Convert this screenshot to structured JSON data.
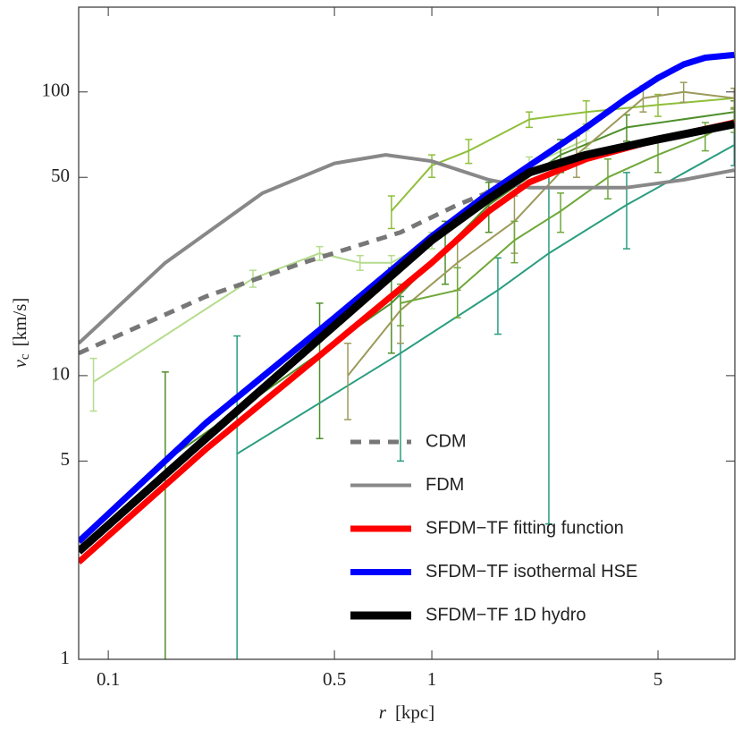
{
  "chart_data": {
    "type": "line",
    "log_x": true,
    "log_y": true,
    "xlim": [
      0.081,
      8.64
    ],
    "ylim": [
      1,
      199
    ],
    "xticks": [
      0.1,
      0.5,
      1,
      5
    ],
    "yticks": [
      1,
      5,
      10,
      50,
      100
    ],
    "xlabel": {
      "symbol": "r",
      "unit": "[kpc]"
    },
    "ylabel": {
      "symbol": "v",
      "subscript": "c",
      "unit": "[km/s]"
    },
    "legend": "lower center",
    "series": [
      {
        "color": "#b5dc8e",
        "width": 2,
        "x": [
          0.09,
          0.28,
          0.45,
          0.6,
          0.75,
          1,
          1.5,
          2,
          3
        ],
        "values": [
          9.5,
          22,
          27,
          25,
          25,
          30,
          42,
          55,
          68
        ],
        "errors": [
          2,
          1.5,
          1.5,
          1.5,
          1.5,
          2,
          3,
          4,
          5
        ]
      },
      {
        "color": "#4f8f2a",
        "width": 2,
        "x": [
          0.15,
          0.45,
          0.75,
          1.1,
          1.5,
          2.5,
          4,
          8.6
        ],
        "values": [
          5,
          12,
          18,
          28,
          40,
          60,
          75,
          85
        ],
        "errors": [
          5.3,
          6,
          6,
          7,
          8,
          8,
          8,
          8
        ]
      },
      {
        "color": "#2a9d7f",
        "width": 2,
        "x": [
          0.25,
          0.8,
          1.6,
          2.3,
          4,
          8.6
        ],
        "values": [
          5.3,
          12,
          20,
          27,
          40,
          65
        ],
        "errors": [
          8.5,
          7,
          6,
          24,
          12,
          10
        ]
      },
      {
        "color": "#8fbf3a",
        "width": 2,
        "x": [
          0.75,
          1,
          1.3,
          2,
          3,
          5,
          8.6
        ],
        "values": [
          38,
          55,
          62,
          80,
          85,
          90,
          95
        ],
        "errors": [
          5,
          5,
          6,
          5,
          8,
          8,
          8
        ]
      },
      {
        "color": "#9c9a5a",
        "width": 2,
        "x": [
          0.55,
          0.8,
          1.2,
          1.8,
          2.8,
          4.5,
          6,
          8.6
        ],
        "values": [
          10,
          17,
          25,
          35,
          60,
          95,
          100,
          95
        ],
        "errors": [
          3,
          4,
          5,
          8,
          10,
          10,
          8,
          8
        ]
      },
      {
        "color": "#6fa83a",
        "width": 2,
        "x": [
          0.8,
          1.2,
          1.8,
          2.5,
          3.5,
          5,
          7,
          8.6
        ],
        "values": [
          18,
          20,
          30,
          38,
          50,
          60,
          70,
          80
        ],
        "errors": [
          3,
          4,
          5,
          6,
          8,
          8,
          8,
          8
        ]
      },
      {
        "name": "CDM",
        "color": "#777777",
        "width": 5,
        "dash": "12 9",
        "x": [
          0.081,
          0.2,
          0.4,
          0.8,
          1.2,
          1.7
        ],
        "values": [
          12,
          19,
          25,
          32,
          40,
          47
        ]
      },
      {
        "name": "FDM",
        "color": "#888888",
        "width": 4,
        "x": [
          0.081,
          0.15,
          0.3,
          0.5,
          0.72,
          1,
          1.5,
          2,
          3,
          4,
          6,
          8.6
        ],
        "values": [
          13,
          25,
          44,
          56,
          60,
          57,
          49,
          46,
          46,
          46,
          49,
          53
        ]
      },
      {
        "name": "SFDM−TF fitting function",
        "color": "#ff0000",
        "width": 7,
        "x": [
          0.081,
          0.2,
          0.5,
          1,
          1.5,
          2,
          3,
          5,
          8.6
        ],
        "values": [
          2.2,
          5.5,
          13,
          25,
          38,
          48,
          58,
          68,
          78
        ]
      },
      {
        "name": "SFDM−TF isothermal HSE",
        "color": "#0000ff",
        "width": 7,
        "x": [
          0.081,
          0.2,
          0.5,
          1,
          1.5,
          2,
          3,
          4,
          5,
          6,
          7,
          8.6
        ],
        "values": [
          2.6,
          6.8,
          16,
          31,
          44,
          55,
          75,
          95,
          112,
          125,
          132,
          135
        ]
      },
      {
        "name": "SFDM−TF 1D hydro",
        "color": "#000000",
        "width": 9,
        "x": [
          0.081,
          0.2,
          0.5,
          1,
          1.5,
          2,
          3,
          5,
          8.6
        ],
        "values": [
          2.4,
          6,
          15,
          30,
          42,
          52,
          60,
          68,
          77
        ]
      }
    ]
  }
}
